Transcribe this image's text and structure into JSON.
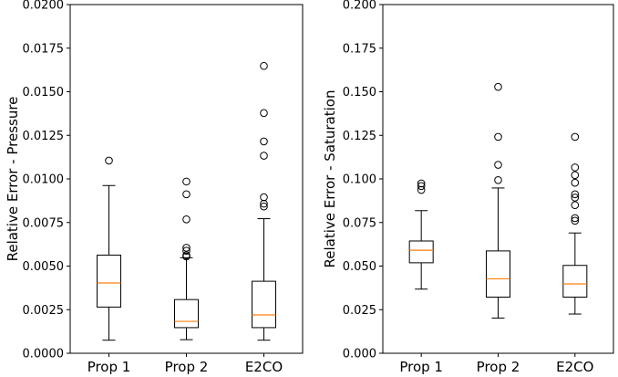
{
  "chart_data": [
    {
      "type": "box",
      "title": "",
      "ylabel": "Relative Error - Pressure",
      "xlabel": "",
      "ylim": [
        0,
        0.02
      ],
      "yticks": [
        "0.0000",
        "0.0025",
        "0.0050",
        "0.0075",
        "0.0100",
        "0.0125",
        "0.0150",
        "0.0175",
        "0.0200"
      ],
      "ytick_values": [
        0,
        0.0025,
        0.005,
        0.0075,
        0.01,
        0.0125,
        0.015,
        0.0175,
        0.02
      ],
      "categories": [
        "Prop 1",
        "Prop 2",
        "E2CO"
      ],
      "boxes": [
        {
          "name": "Prop 1",
          "whislo": 0.00075,
          "q1": 0.00265,
          "med": 0.00403,
          "q3": 0.00563,
          "whishi": 0.00962,
          "fliers": [
            0.01105
          ]
        },
        {
          "name": "Prop 2",
          "whislo": 0.00078,
          "q1": 0.00147,
          "med": 0.00183,
          "q3": 0.00308,
          "whishi": 0.00548,
          "fliers": [
            0.00555,
            0.00562,
            0.00588,
            0.00605,
            0.00768,
            0.00912,
            0.00985
          ]
        },
        {
          "name": "E2CO",
          "whislo": 0.00075,
          "q1": 0.00147,
          "med": 0.0022,
          "q3": 0.00413,
          "whishi": 0.00772,
          "fliers": [
            0.00842,
            0.00858,
            0.00895,
            0.01133,
            0.01215,
            0.01378,
            0.01648
          ]
        }
      ]
    },
    {
      "type": "box",
      "title": "",
      "ylabel": "Relative Error - Saturation",
      "xlabel": "",
      "ylim": [
        0,
        0.2
      ],
      "yticks": [
        "0.000",
        "0.025",
        "0.050",
        "0.075",
        "0.100",
        "0.125",
        "0.150",
        "0.175",
        "0.200"
      ],
      "ytick_values": [
        0,
        0.025,
        0.05,
        0.075,
        0.1,
        0.125,
        0.15,
        0.175,
        0.2
      ],
      "categories": [
        "Prop 1",
        "Prop 2",
        "E2CO"
      ],
      "boxes": [
        {
          "name": "Prop 1",
          "whislo": 0.0368,
          "q1": 0.0519,
          "med": 0.0591,
          "q3": 0.0644,
          "whishi": 0.0818,
          "fliers": [
            0.0937,
            0.0959,
            0.0974
          ]
        },
        {
          "name": "Prop 2",
          "whislo": 0.0202,
          "q1": 0.0322,
          "med": 0.0427,
          "q3": 0.0587,
          "whishi": 0.0948,
          "fliers": [
            0.0993,
            0.1081,
            0.1241,
            0.1528
          ]
        },
        {
          "name": "E2CO",
          "whislo": 0.0225,
          "q1": 0.0322,
          "med": 0.0398,
          "q3": 0.0504,
          "whishi": 0.069,
          "fliers": [
            0.076,
            0.0775,
            0.085,
            0.0893,
            0.0912,
            0.0978,
            0.1022,
            0.1066,
            0.1241
          ]
        }
      ]
    }
  ],
  "colors": {
    "box": "#000000",
    "median": "#ff7f0e",
    "background": "#ffffff"
  }
}
